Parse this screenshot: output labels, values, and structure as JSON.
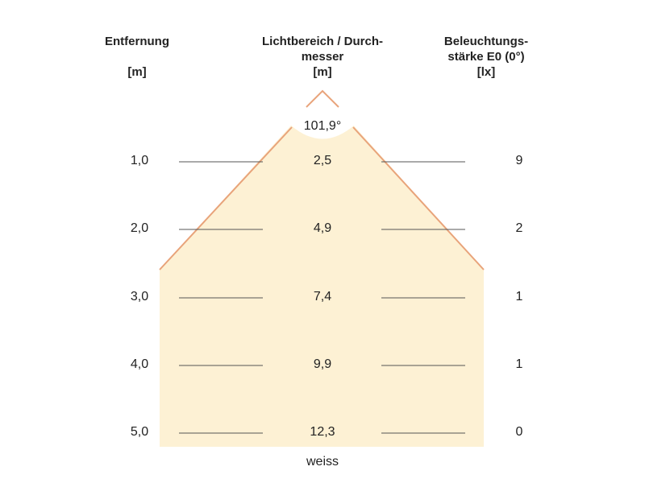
{
  "headers": {
    "distance": {
      "title": "Entfernung",
      "unit": "[m]"
    },
    "light_area": {
      "title_line1": "Lichtbereich / Durch-",
      "title_line2": "messer",
      "unit": "[m]"
    },
    "illuminance": {
      "title_line1": "Beleuchtungs-",
      "title_line2": "stärke E0 (0°)",
      "unit": "[lx]"
    }
  },
  "beam_angle": "101,9°",
  "rows": [
    {
      "distance": "1,0",
      "diameter": "2,5",
      "lux": "9"
    },
    {
      "distance": "2,0",
      "diameter": "4,9",
      "lux": "2"
    },
    {
      "distance": "3,0",
      "diameter": "7,4",
      "lux": "1"
    },
    {
      "distance": "4,0",
      "diameter": "9,9",
      "lux": "1"
    },
    {
      "distance": "5,0",
      "diameter": "12,3",
      "lux": "0"
    }
  ],
  "footer": "weiss",
  "colors": {
    "cone_fill": "#fdf1d4",
    "cone_edge": "#e8a37a",
    "rule": "#555555"
  }
}
